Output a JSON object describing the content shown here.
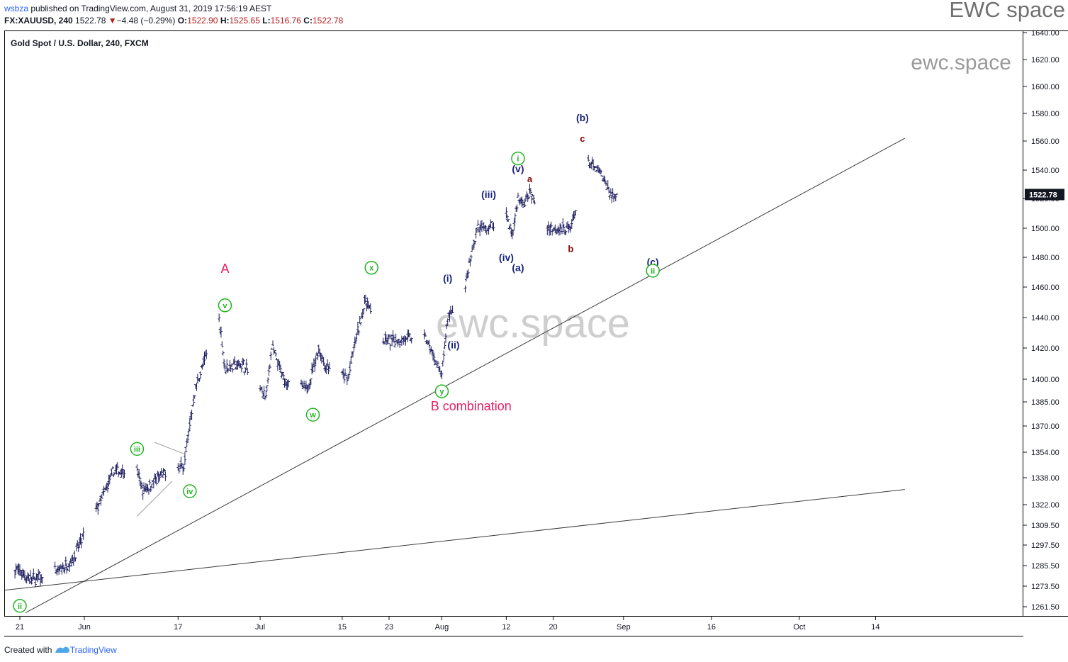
{
  "header": {
    "user": "wsbza",
    "published": " published on TradingView.com, August 31, 2019 17:56:19 AEST",
    "symbol": "FX:XAUUSD, 240",
    "last": "1522.78",
    "change_arrow": "▼",
    "change": "−4.48 (−0.29%)",
    "o_label": "O:",
    "o_value": "1522.90",
    "h_label": "H:",
    "h_value": "1525.65",
    "l_label": "L:",
    "l_value": "1516.76",
    "c_label": "C:",
    "c_value": "1522.78"
  },
  "brand": "EWC space",
  "chart_title": "Gold Spot / U.S. Dollar, 240, FXCM",
  "watermark_small": "ewc.space",
  "watermark_center": "ewc.space",
  "footer": {
    "created_with": "Created with",
    "logo_text": "TradingView"
  },
  "colors": {
    "candle": "#1b1b5e",
    "green": "#21b521",
    "navy": "#1a237e",
    "darkred": "#8b0000",
    "pink": "#e91e63",
    "price_tag": "#131722",
    "header_red": "#b71c1c"
  },
  "chart_data": {
    "type": "ohlc",
    "title": "Gold Spot / U.S. Dollar, 240, FXCM",
    "last_price": "1522.78",
    "y_tick_labels": [
      "1640.00",
      "1620.00",
      "1600.00",
      "1580.00",
      "1560.00",
      "1540.00",
      "1520.00",
      "1500.00",
      "1480.00",
      "1460.00",
      "1440.00",
      "1420.00",
      "1400.00",
      "1385.00",
      "1370.00",
      "1354.00",
      "1338.00",
      "1322.00",
      "1309.50",
      "1297.50",
      "1285.50",
      "1273.50",
      "1261.50"
    ],
    "x_tick_labels": [
      "21",
      "Jun",
      "17",
      "Jul",
      "15",
      "23",
      "Aug",
      "12",
      "20",
      "Sep",
      "16",
      "Oct",
      "14"
    ],
    "path_dates": [
      "2019-05-20",
      "2019-05-23",
      "2019-05-28",
      "2019-05-30",
      "2019-06-04",
      "2019-06-06",
      "2019-06-10",
      "2019-06-11",
      "2019-06-14",
      "2019-06-17",
      "2019-06-18",
      "2019-06-20",
      "2019-06-24",
      "2019-06-25",
      "2019-06-28",
      "2019-07-02",
      "2019-07-03",
      "2019-07-05",
      "2019-07-09",
      "2019-07-11",
      "2019-07-12",
      "2019-07-16",
      "2019-07-17",
      "2019-07-19",
      "2019-07-22",
      "2019-07-24",
      "2019-07-29",
      "2019-08-01",
      "2019-08-02",
      "2019-08-05",
      "2019-08-07",
      "2019-08-09",
      "2019-08-12",
      "2019-08-13",
      "2019-08-14",
      "2019-08-15",
      "2019-08-16",
      "2019-08-19",
      "2019-08-22",
      "2019-08-23",
      "2019-08-26",
      "2019-08-28",
      "2019-08-30"
    ],
    "path_prices": [
      1284,
      1277,
      1283,
      1289,
      1326,
      1342,
      1342,
      1330,
      1339,
      1344,
      1346,
      1395,
      1440,
      1407,
      1410,
      1388,
      1421,
      1400,
      1393,
      1420,
      1409,
      1400,
      1420,
      1452,
      1425,
      1425,
      1428,
      1402,
      1440,
      1460,
      1500,
      1500,
      1510,
      1495,
      1520,
      1515,
      1525,
      1500,
      1500,
      1500,
      1545,
      1538,
      1522
    ],
    "trendlines": [
      {
        "name": "lower channel",
        "from": [
          "2019-05-22",
          1258
        ],
        "to": [
          "2019-10-19",
          1562
        ]
      },
      {
        "name": "long support",
        "from": [
          "2019-05-18",
          1271
        ],
        "to": [
          "2019-10-19",
          1331
        ]
      },
      {
        "name": "triangle upper",
        "from": [
          "2019-06-13",
          1360
        ],
        "to": [
          "2019-06-18",
          1353
        ]
      },
      {
        "name": "triangle lower",
        "from": [
          "2019-06-10",
          1315
        ],
        "to": [
          "2019-06-16",
          1336
        ]
      }
    ],
    "wave_labels": [
      {
        "text": "ii",
        "style": "circled-green",
        "at": [
          "2019-05-21",
          1262
        ]
      },
      {
        "text": "iii",
        "style": "circled-green",
        "at": [
          "2019-06-10",
          1356
        ]
      },
      {
        "text": "iv",
        "style": "circled-green",
        "at": [
          "2019-06-19",
          1330
        ]
      },
      {
        "text": "v",
        "style": "circled-green",
        "at": [
          "2019-06-25",
          1448
        ]
      },
      {
        "text": "A",
        "style": "pink",
        "at": [
          "2019-06-25",
          1472
        ]
      },
      {
        "text": "w",
        "style": "circled-green",
        "at": [
          "2019-07-10",
          1377
        ]
      },
      {
        "text": "x",
        "style": "circled-green",
        "at": [
          "2019-07-20",
          1473
        ]
      },
      {
        "text": "y",
        "style": "circled-green",
        "at": [
          "2019-08-01",
          1392
        ]
      },
      {
        "text": "B combination",
        "style": "pink",
        "at": [
          "2019-08-06",
          1382
        ]
      },
      {
        "text": "(i)",
        "style": "navy",
        "at": [
          "2019-08-02",
          1466
        ]
      },
      {
        "text": "(ii)",
        "style": "navy",
        "at": [
          "2019-08-03",
          1422
        ]
      },
      {
        "text": "(iii)",
        "style": "navy",
        "at": [
          "2019-08-09",
          1523
        ]
      },
      {
        "text": "(iv)",
        "style": "navy",
        "at": [
          "2019-08-12",
          1480
        ]
      },
      {
        "text": "(v)",
        "style": "navy",
        "at": [
          "2019-08-14",
          1541
        ]
      },
      {
        "text": "i",
        "style": "circled-green",
        "at": [
          "2019-08-14",
          1548
        ]
      },
      {
        "text": "(a)",
        "style": "navy",
        "at": [
          "2019-08-14",
          1473
        ]
      },
      {
        "text": "a",
        "style": "darkred",
        "at": [
          "2019-08-16",
          1534
        ]
      },
      {
        "text": "b",
        "style": "darkred",
        "at": [
          "2019-08-23",
          1486
        ]
      },
      {
        "text": "c",
        "style": "darkred",
        "at": [
          "2019-08-25",
          1562
        ]
      },
      {
        "text": "(b)",
        "style": "navy",
        "at": [
          "2019-08-25",
          1577
        ]
      },
      {
        "text": "(c)",
        "style": "navy",
        "at": [
          "2019-09-06",
          1477
        ]
      },
      {
        "text": "ii",
        "style": "circled-green",
        "at": [
          "2019-09-06",
          1471
        ]
      }
    ]
  }
}
